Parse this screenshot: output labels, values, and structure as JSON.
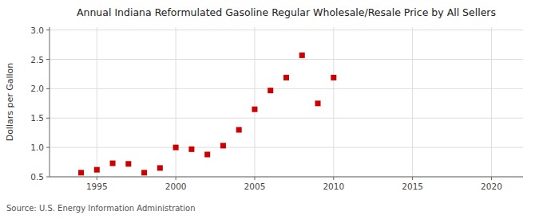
{
  "chart_data": {
    "type": "scatter",
    "title": "Annual Indiana Reformulated Gasoline Regular Wholesale/Resale Price by All Sellers",
    "ylabel": "Dollars per Gallon",
    "source": "Source: U.S. Energy Information Administration",
    "x": [
      1994,
      1995,
      1996,
      1997,
      1998,
      1999,
      2000,
      2001,
      2002,
      2003,
      2004,
      2005,
      2006,
      2007,
      2008,
      2009,
      2010
    ],
    "values": [
      0.57,
      0.62,
      0.73,
      0.72,
      0.57,
      0.65,
      1.0,
      0.97,
      0.88,
      1.03,
      1.3,
      1.65,
      1.97,
      2.19,
      2.57,
      1.75,
      2.19
    ],
    "color": "#cc0000",
    "marker": "square",
    "xlim": [
      1992,
      2022
    ],
    "ylim": [
      0.5,
      3.05
    ],
    "xticks": [
      1995,
      2000,
      2005,
      2010,
      2015,
      2020
    ],
    "yticks": [
      0.5,
      {
        "value": 1.0,
        "label": "1.0"
      },
      1.5,
      {
        "value": 2.0,
        "label": "2.0"
      },
      2.5,
      {
        "value": 3.0,
        "label": "3.0"
      }
    ],
    "grid": true
  }
}
